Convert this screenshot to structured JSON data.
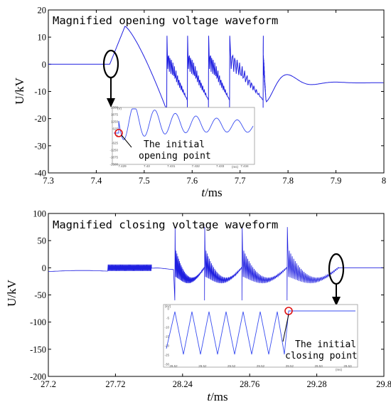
{
  "chart_data": [
    {
      "type": "line",
      "title": "Magnified opening voltage waveform",
      "xlabel_italic": "t",
      "xlabel_unit": "/ms",
      "ylabel": "U/kV",
      "xlim": [
        7.3,
        8.0
      ],
      "ylim": [
        -40,
        20
      ],
      "x_ticks": [
        "7.3",
        "7.4",
        "7.5",
        "7.6",
        "7.7",
        "7.8",
        "7.9",
        "8"
      ],
      "y_ticks": [
        "20",
        "10",
        "0",
        "-10",
        "-20",
        "-30",
        "-40"
      ],
      "series_color": "#1f1fe0",
      "annotation": {
        "text_line1": "The initial",
        "text_line2": "opening point"
      },
      "inset": {
        "y_ticks": [
          "2500",
          "1875",
          "1250",
          "625",
          "0",
          "-625",
          "-1250",
          "-1875",
          "-2500"
        ],
        "y_unit": "(V)",
        "x_ticks": [
          "7.429",
          "7.43",
          "7.431",
          "7.432",
          "7.433",
          "7.434"
        ],
        "x_unit": "(ms)"
      }
    },
    {
      "type": "line",
      "title": "Magnified closing voltage waveform",
      "xlabel_italic": "t",
      "xlabel_unit": "/ms",
      "ylabel": "U/kV",
      "xlim": [
        27.2,
        29.8
      ],
      "ylim": [
        -200,
        100
      ],
      "x_ticks": [
        "27.2",
        "27.72",
        "28.24",
        "28.76",
        "29.28",
        "29.8"
      ],
      "y_ticks": [
        "100",
        "50",
        "0",
        "-50",
        "-100",
        "-150",
        "-200"
      ],
      "series_color": "#1f1fe0",
      "annotation": {
        "text_line1": "The initial",
        "text_line2": "closing point"
      },
      "inset": {
        "y_ticks": [
          "0",
          "-5",
          "-10",
          "-15",
          "-20",
          "-25",
          "-30"
        ],
        "y_unit": "(kV)",
        "x_ticks": [
          "29.52",
          "29.52",
          "29.52",
          "29.52",
          "29.52",
          "29.53",
          "29.53"
        ],
        "x_unit": "(ms)"
      }
    }
  ]
}
